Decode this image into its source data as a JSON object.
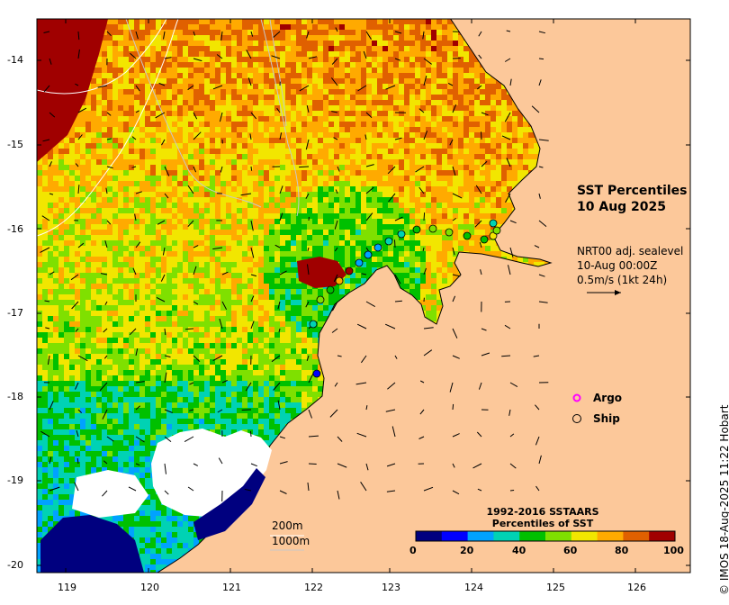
{
  "title": {
    "line1": "SST Percentiles",
    "line2": "10 Aug 2025"
  },
  "current_info": {
    "line1": "NRT00 adj. sealevel",
    "line2": "10-Aug 00:00Z",
    "line3": "0.5m/s (1kt 24h)"
  },
  "legend": {
    "argo": "Argo",
    "ship": "Ship"
  },
  "contours": {
    "label1": "200m",
    "label2": "1000m"
  },
  "colorbar": {
    "title1": "1992-2016 SSTAARS",
    "title2": "Percentiles of SST",
    "ticks": [
      "0",
      "20",
      "40",
      "60",
      "80",
      "100"
    ],
    "colors": [
      "#00007f",
      "#0000ff",
      "#00a2ff",
      "#00d2b4",
      "#00c000",
      "#7fe000",
      "#f2e600",
      "#ffaa00",
      "#e06000",
      "#a00000"
    ]
  },
  "axes": {
    "lat_ticks": [
      "-14",
      "-15",
      "-16",
      "-17",
      "-18",
      "-19",
      "-20"
    ],
    "lon_ticks": [
      "119",
      "120",
      "121",
      "122",
      "123",
      "124",
      "125",
      "126"
    ]
  },
  "credit": "© IMOS 18-Aug-2025 11:22 Hobart",
  "colors": {
    "land": "#fcc89a",
    "legend_argo": "#ff00ff",
    "ship_marker": "#000000",
    "no_data": "#ffffff"
  }
}
